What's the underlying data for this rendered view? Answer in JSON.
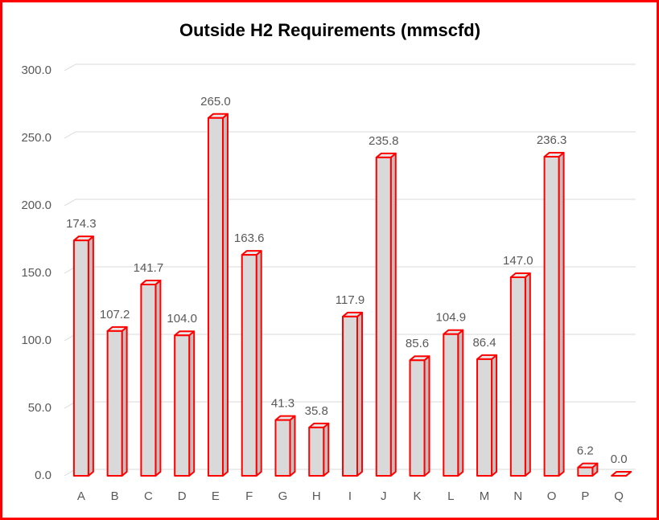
{
  "chart_data": {
    "type": "bar3d",
    "title": "Outside H2 Requirements (mmscfd)",
    "categories": [
      "A",
      "B",
      "C",
      "D",
      "E",
      "F",
      "G",
      "H",
      "I",
      "J",
      "K",
      "L",
      "M",
      "N",
      "O",
      "P",
      "Q"
    ],
    "values": [
      174.3,
      107.2,
      141.7,
      104.0,
      265.0,
      163.6,
      41.3,
      35.8,
      117.9,
      235.8,
      85.6,
      104.9,
      86.4,
      147.0,
      236.3,
      6.2,
      0.0
    ],
    "value_labels": [
      "174.3",
      "107.2",
      "141.7",
      "104.0",
      "265.0",
      "163.6",
      "41.3",
      "35.8",
      "117.9",
      "235.8",
      "85.6",
      "104.9",
      "86.4",
      "147.0",
      "236.3",
      "6.2",
      "0.0"
    ],
    "color": "#d9d9d9",
    "edge_color": "#ff0000",
    "ylim": [
      0,
      300
    ],
    "yticks": [
      {
        "value": 0,
        "label": "0.0"
      },
      {
        "value": 50,
        "label": "50.0"
      },
      {
        "value": 100,
        "label": "100.0"
      },
      {
        "value": 150,
        "label": "150.0"
      },
      {
        "value": 200,
        "label": "200.0"
      },
      {
        "value": 250,
        "label": "250.0"
      },
      {
        "value": 300,
        "label": "300.0"
      }
    ],
    "grid": true
  }
}
